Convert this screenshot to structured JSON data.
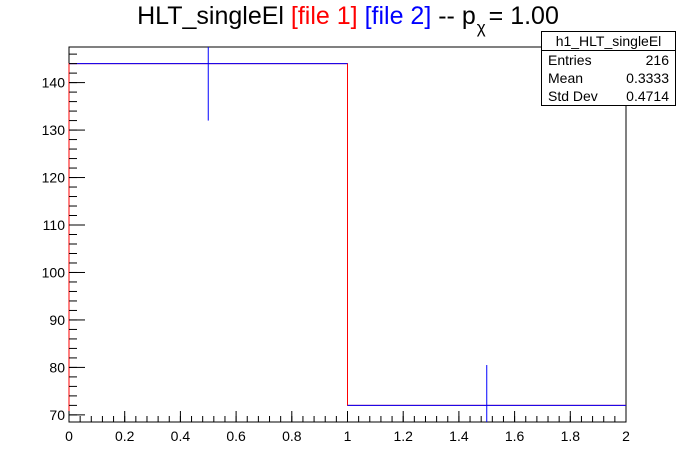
{
  "title": {
    "main": "HLT_singleEl",
    "file1": "[file 1]",
    "file2": "[file 2]",
    "sep": "-- p",
    "sub": "χ",
    "value": "= 1.00"
  },
  "stats": {
    "name": "h1_HLT_singleEl",
    "rows": [
      {
        "label": "Entries",
        "value": "216"
      },
      {
        "label": "Mean",
        "value": "0.3333"
      },
      {
        "label": "Std Dev",
        "value": "0.4714"
      }
    ]
  },
  "colors": {
    "file1": "#ff0000",
    "file2": "#0000ff",
    "axis": "#000000"
  },
  "chart_data": {
    "type": "bar",
    "style": "histogram-step",
    "xlim": [
      0,
      2
    ],
    "ylim": [
      68.5,
      147.5
    ],
    "x_ticks": [
      "0",
      "0.2",
      "0.4",
      "0.6",
      "0.8",
      "1",
      "1.2",
      "1.4",
      "1.6",
      "1.8",
      "2"
    ],
    "y_ticks": [
      "70",
      "80",
      "90",
      "100",
      "110",
      "120",
      "130",
      "140"
    ],
    "x_tick_values": [
      0,
      0.2,
      0.4,
      0.6,
      0.8,
      1,
      1.2,
      1.4,
      1.6,
      1.8,
      2
    ],
    "y_tick_values": [
      70,
      80,
      90,
      100,
      110,
      120,
      130,
      140
    ],
    "bins": [
      {
        "low": 0,
        "high": 1
      },
      {
        "low": 1,
        "high": 2
      }
    ],
    "series": [
      {
        "name": "file 1",
        "color": "#ff0000",
        "values": [
          144,
          72
        ]
      },
      {
        "name": "file 2",
        "color": "#0000ff",
        "values": [
          144,
          72
        ],
        "errors": [
          12,
          8.5
        ]
      }
    ],
    "xlabel": "",
    "ylabel": "",
    "grid": false,
    "legend": "top-right stats box"
  }
}
